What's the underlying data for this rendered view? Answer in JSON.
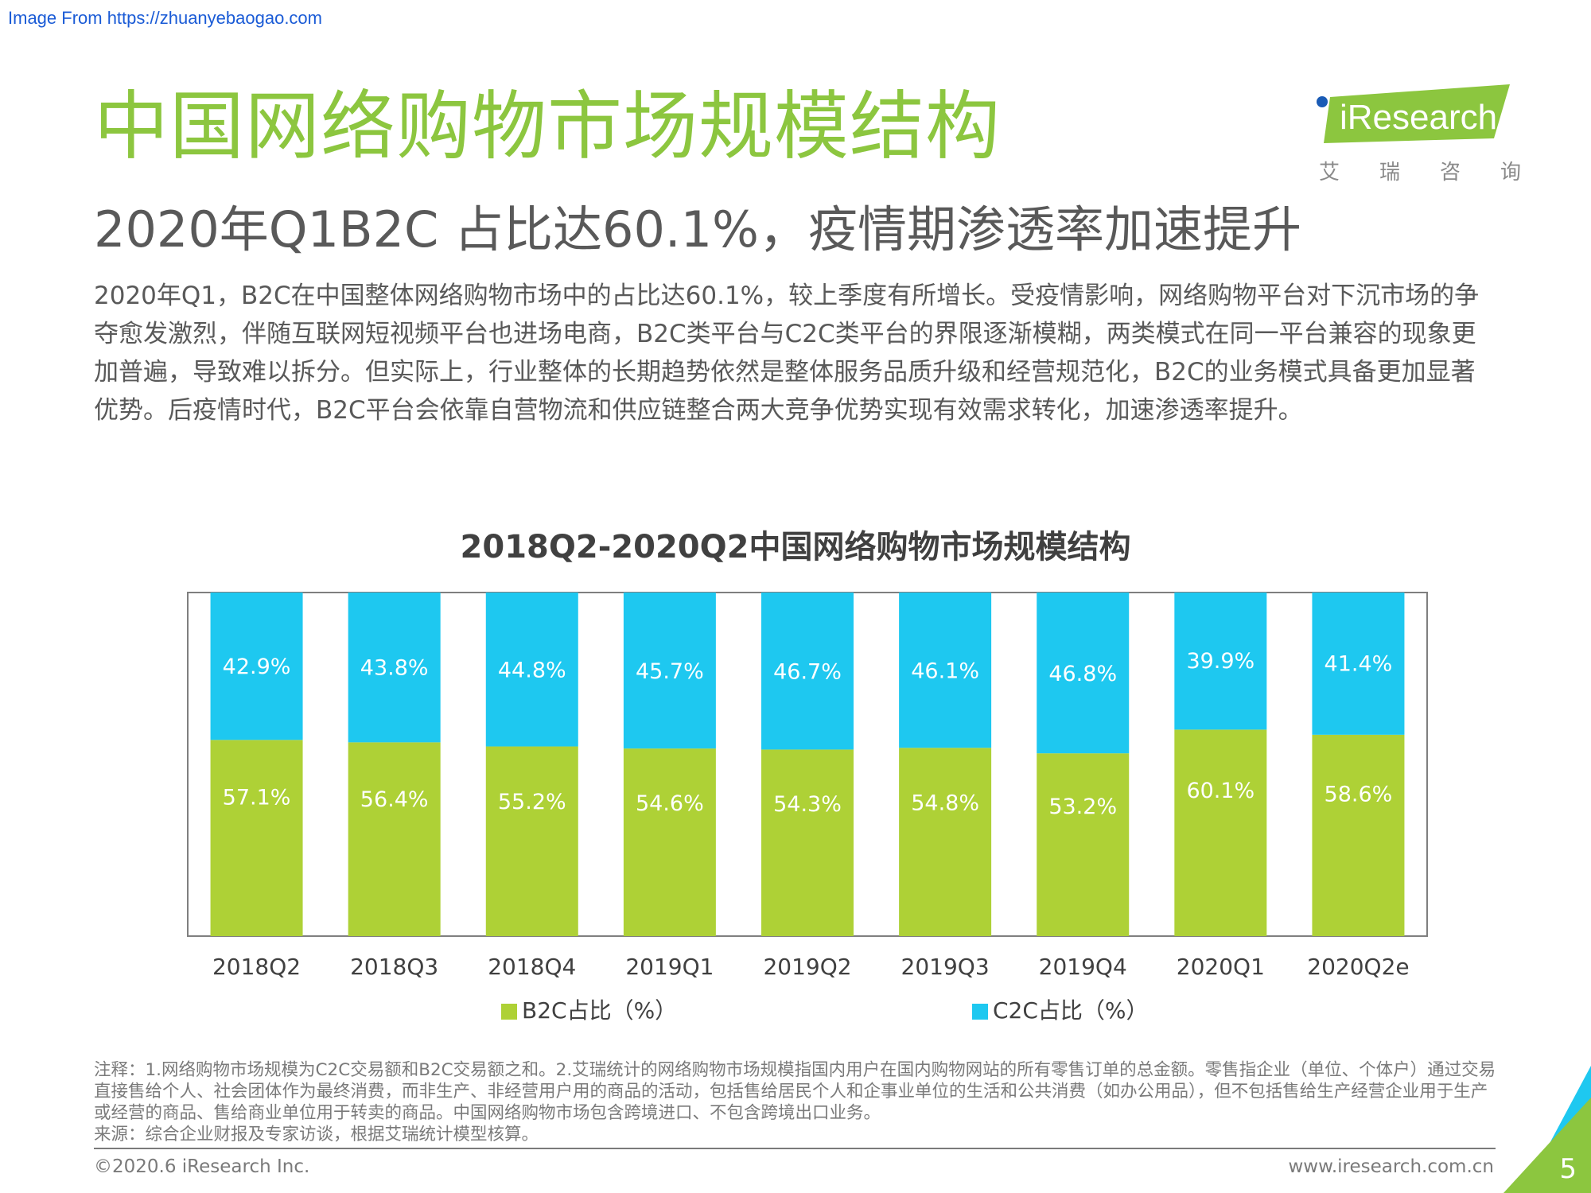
{
  "source_note": "Image From https://zhuanyebaogao.com",
  "title": "中国网络购物市场规模结构",
  "subtitle": "2020年Q1B2C 占比达60.1%，疫情期渗透率加速提升",
  "body": "2020年Q1，B2C在中国整体网络购物市场中的占比达60.1%，较上季度有所增长。受疫情影响，网络购物平台对下沉市场的争夺愈发激烈，伴随互联网短视频平台也进场电商，B2C类平台与C2C类平台的界限逐渐模糊，两类模式在同一平台兼容的现象更加普遍，导致难以拆分。但实际上，行业整体的长期趋势依然是整体服务品质升级和经营规范化，B2C的业务模式具备更加显著优势。后疫情时代，B2C平台会依靠自营物流和供应链整合两大竞争优势实现有效需求转化，加速渗透率提升。",
  "logo": {
    "wordmark": "iResearch",
    "cn": [
      "艾",
      "瑞",
      "咨",
      "询"
    ]
  },
  "chart_data": {
    "type": "bar",
    "stacked": true,
    "title": "2018Q2-2020Q2中国网络购物市场规模结构",
    "categories": [
      "2018Q2",
      "2018Q3",
      "2018Q4",
      "2019Q1",
      "2019Q2",
      "2019Q3",
      "2019Q4",
      "2020Q1",
      "2020Q2e"
    ],
    "series": [
      {
        "name": "B2C占比（%）",
        "color": "#aed136",
        "values": [
          57.1,
          56.4,
          55.2,
          54.6,
          54.3,
          54.8,
          53.2,
          60.1,
          58.6
        ]
      },
      {
        "name": "C2C占比（%）",
        "color": "#1ec8f0",
        "values": [
          42.9,
          43.8,
          44.8,
          45.7,
          46.7,
          46.1,
          46.8,
          39.9,
          41.4
        ]
      }
    ],
    "labels": {
      "B2C": [
        "57.1%",
        "56.4%",
        "55.2%",
        "54.6%",
        "54.3%",
        "54.8%",
        "53.2%",
        "60.1%",
        "58.6%"
      ],
      "C2C": [
        "42.9%",
        "43.8%",
        "44.8%",
        "45.7%",
        "46.7%",
        "46.1%",
        "46.8%",
        "39.9%",
        "41.4%"
      ]
    },
    "ylim": [
      0,
      100
    ],
    "grid": false,
    "legend_position": "bottom"
  },
  "notes": [
    "注释：1.网络购物市场规模为C2C交易额和B2C交易额之和。2.艾瑞统计的网络购物市场规模指国内用户在国内购物网站的所有零售订单的总金额。零售指企业（单位、个体户）通过交易直接售给个人、社会团体作为最终消费，而非生产、非经营用户用的商品的活动，包括售给居民个人和企事业单位的生活和公共消费（如办公用品），但不包括售给生产经营企业用于生产或经营的商品、售给商业单位用于转卖的商品。中国网络购物市场包含跨境进口、不包含跨境出口业务。",
    "来源：综合企业财报及专家访谈，根据艾瑞统计模型核算。"
  ],
  "footer": {
    "copyright": "©2020.6 iResearch Inc.",
    "website": "www.iresearch.com.cn",
    "page": "5"
  },
  "colors": {
    "title_green": "#8cc63f",
    "b2c_green": "#aed136",
    "c2c_blue": "#1ec8f0"
  }
}
